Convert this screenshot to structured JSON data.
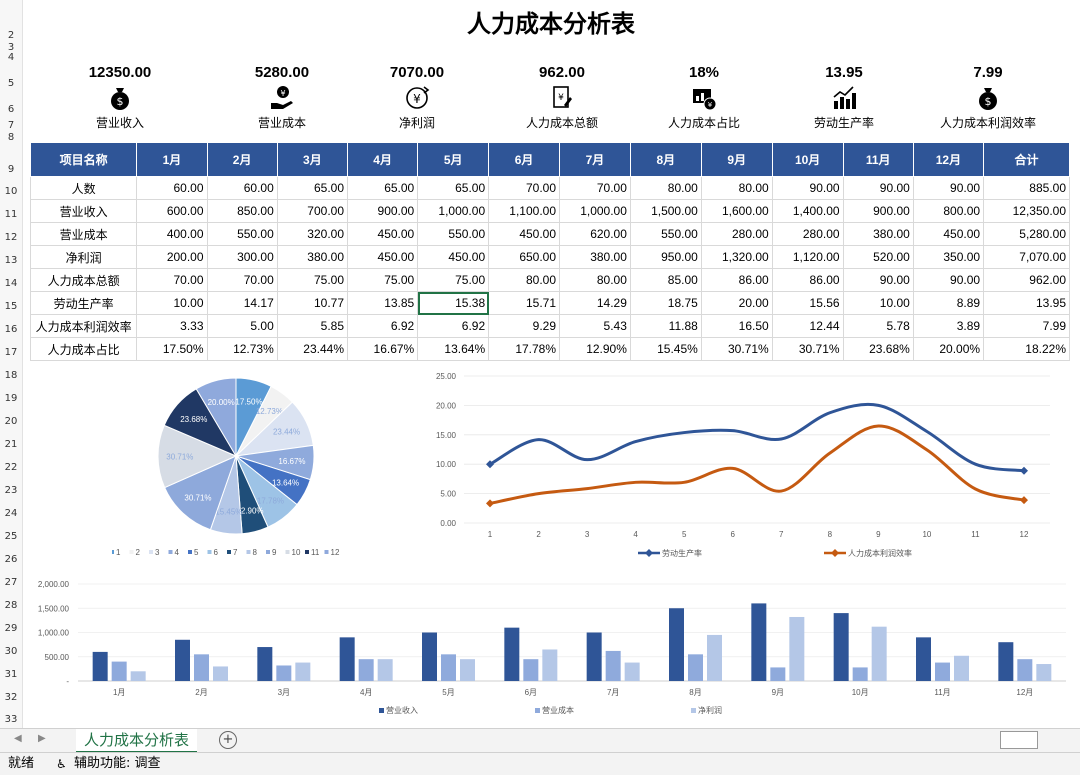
{
  "title": "人力成本分析表",
  "kpis": [
    {
      "value": "12350.00",
      "label": "营业收入",
      "icon": "money-bag-icon"
    },
    {
      "value": "5280.00",
      "label": "营业成本",
      "icon": "hand-money-icon"
    },
    {
      "value": "7070.00",
      "label": "净利润",
      "icon": "yuan-cycle-icon"
    },
    {
      "value": "962.00",
      "label": "人力成本总额",
      "icon": "invoice-icon"
    },
    {
      "value": "18%",
      "label": "人力成本占比",
      "icon": "report-chart-icon"
    },
    {
      "value": "13.95",
      "label": "劳动生产率",
      "icon": "growth-chart-icon"
    },
    {
      "value": "7.99",
      "label": "人力成本利润效率",
      "icon": "money-bag-icon"
    }
  ],
  "table": {
    "headers": [
      "项目名称",
      "1月",
      "2月",
      "3月",
      "4月",
      "5月",
      "6月",
      "7月",
      "8月",
      "9月",
      "10月",
      "11月",
      "12月",
      "合计"
    ],
    "rows": [
      [
        "人数",
        "60.00",
        "60.00",
        "65.00",
        "65.00",
        "65.00",
        "70.00",
        "70.00",
        "80.00",
        "80.00",
        "90.00",
        "90.00",
        "90.00",
        "885.00"
      ],
      [
        "营业收入",
        "600.00",
        "850.00",
        "700.00",
        "900.00",
        "1,000.00",
        "1,100.00",
        "1,000.00",
        "1,500.00",
        "1,600.00",
        "1,400.00",
        "900.00",
        "800.00",
        "12,350.00"
      ],
      [
        "营业成本",
        "400.00",
        "550.00",
        "320.00",
        "450.00",
        "550.00",
        "450.00",
        "620.00",
        "550.00",
        "280.00",
        "280.00",
        "380.00",
        "450.00",
        "5,280.00"
      ],
      [
        "净利润",
        "200.00",
        "300.00",
        "380.00",
        "450.00",
        "450.00",
        "650.00",
        "380.00",
        "950.00",
        "1,320.00",
        "1,120.00",
        "520.00",
        "350.00",
        "7,070.00"
      ],
      [
        "人力成本总额",
        "70.00",
        "70.00",
        "75.00",
        "75.00",
        "75.00",
        "80.00",
        "80.00",
        "85.00",
        "86.00",
        "86.00",
        "90.00",
        "90.00",
        "962.00"
      ],
      [
        "劳动生产率",
        "10.00",
        "14.17",
        "10.77",
        "13.85",
        "15.38",
        "15.71",
        "14.29",
        "18.75",
        "20.00",
        "15.56",
        "10.00",
        "8.89",
        "13.95"
      ],
      [
        "人力成本利润效率",
        "3.33",
        "5.00",
        "5.85",
        "6.92",
        "6.92",
        "9.29",
        "5.43",
        "11.88",
        "16.50",
        "12.44",
        "5.78",
        "3.89",
        "7.99"
      ],
      [
        "人力成本占比",
        "17.50%",
        "12.73%",
        "23.44%",
        "16.67%",
        "13.64%",
        "17.78%",
        "12.90%",
        "15.45%",
        "30.71%",
        "30.71%",
        "23.68%",
        "20.00%",
        "18.22%"
      ]
    ]
  },
  "row_numbers": [
    "2",
    "3",
    "4",
    "5",
    "6",
    "7",
    "8",
    "9",
    "10",
    "11",
    "12",
    "13",
    "14",
    "15",
    "16",
    "17",
    "18",
    "19",
    "20",
    "21",
    "22",
    "23",
    "24",
    "25",
    "26",
    "27",
    "28",
    "29",
    "30",
    "31",
    "32",
    "33"
  ],
  "chart_data": [
    {
      "type": "pie",
      "categories": [
        "1",
        "2",
        "3",
        "4",
        "5",
        "6",
        "7",
        "8",
        "9",
        "10",
        "11",
        "12"
      ],
      "values": [
        17.5,
        12.73,
        23.44,
        16.67,
        13.64,
        17.78,
        12.9,
        15.45,
        30.71,
        30.71,
        23.68,
        20.0
      ],
      "data_labels": [
        "17.50%",
        "12.73%",
        "23.44%",
        "16.67%",
        "13.64%",
        "17.78%",
        "12.90%",
        "15.45%",
        "30.71%",
        "30.71%",
        "23.68%",
        "20.00%"
      ],
      "colors": [
        "#5b9bd5",
        "#f2f2f2",
        "#dbe3f2",
        "#8faadc",
        "#4472c4",
        "#9dc3e6",
        "#1f4e79",
        "#b4c7e7",
        "#8ea9db",
        "#d6dce5",
        "#203864",
        "#8fa9dc"
      ],
      "legend": "bottom"
    },
    {
      "type": "line",
      "x": [
        "1",
        "2",
        "3",
        "4",
        "5",
        "6",
        "7",
        "8",
        "9",
        "10",
        "11",
        "12"
      ],
      "series": [
        {
          "name": "劳动生产率",
          "values": [
            10.0,
            14.17,
            10.77,
            13.85,
            15.38,
            15.71,
            14.29,
            18.75,
            20.0,
            15.56,
            10.0,
            8.89
          ],
          "color": "#2f5597"
        },
        {
          "name": "人力成本利润效率",
          "values": [
            3.33,
            5.0,
            5.85,
            6.92,
            6.92,
            9.29,
            5.43,
            11.88,
            16.5,
            12.44,
            5.78,
            3.89
          ],
          "color": "#c55a11"
        }
      ],
      "yticks": [
        "0.00",
        "5.00",
        "10.00",
        "15.00",
        "20.00",
        "25.00"
      ],
      "ylim": [
        0,
        25
      ],
      "legend": "bottom"
    },
    {
      "type": "bar",
      "categories": [
        "1月",
        "2月",
        "3月",
        "4月",
        "5月",
        "6月",
        "7月",
        "8月",
        "9月",
        "10月",
        "11月",
        "12月"
      ],
      "series": [
        {
          "name": "营业收入",
          "values": [
            600,
            850,
            700,
            900,
            1000,
            1100,
            1000,
            1500,
            1600,
            1400,
            900,
            800
          ],
          "color": "#2f5597"
        },
        {
          "name": "营业成本",
          "values": [
            400,
            550,
            320,
            450,
            550,
            450,
            620,
            550,
            280,
            280,
            380,
            450
          ],
          "color": "#8faadc"
        },
        {
          "name": "净利润",
          "values": [
            200,
            300,
            380,
            450,
            450,
            650,
            380,
            950,
            1320,
            1120,
            520,
            350
          ],
          "color": "#b4c7e7"
        }
      ],
      "yticks": [
        "-",
        "500.00",
        "1,000.00",
        "1,500.00",
        "2,000.00"
      ],
      "ylim": [
        0,
        2000
      ],
      "legend": "bottom"
    }
  ],
  "sheet_tab": "人力成本分析表",
  "add_sheet_icon": "plus-circle-icon",
  "status": {
    "ready": "就绪",
    "accessibility": "辅助功能: 调查"
  }
}
